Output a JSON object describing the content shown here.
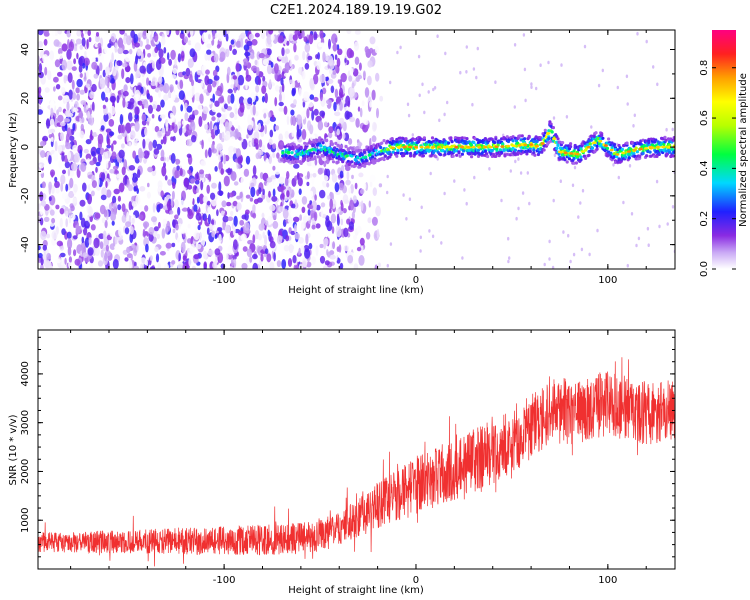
{
  "title": "C2E1.2024.189.19.19.G02",
  "chart_data": [
    {
      "type": "heatmap",
      "panel": "spectrogram",
      "xlabel": "Height of straight line (km)",
      "ylabel": "Frequency (Hz)",
      "xlim": [
        -197,
        135
      ],
      "ylim": [
        -50,
        48
      ],
      "x_ticks": [
        -100,
        0,
        100
      ],
      "x_tick_labels": [
        "-100",
        "0",
        "100"
      ],
      "y_ticks": [
        -40,
        -20,
        0,
        20,
        40
      ],
      "y_tick_labels": [
        "-40",
        "-20",
        "0",
        "20",
        "40"
      ],
      "colorbar": {
        "label": "Normalized spectral amplitude",
        "range": [
          0,
          0.95
        ],
        "ticks": [
          0.0,
          0.2,
          0.4,
          0.6,
          0.8
        ],
        "tick_labels": [
          "0.0",
          "0.2",
          "0.4",
          "0.6",
          "0.8"
        ],
        "colormap": "rainbow"
      },
      "noise_region_x": [
        -197,
        -18
      ],
      "signal_ridge": {
        "x": [
          -70,
          -60,
          -50,
          -40,
          -30,
          -20,
          -10,
          0,
          20,
          40,
          60,
          65,
          70,
          75,
          85,
          95,
          105,
          115,
          125,
          135
        ],
        "y": [
          -2,
          -3,
          0,
          -3,
          -5,
          -2,
          0,
          0,
          0,
          0,
          1,
          0,
          7,
          -2,
          -3,
          3,
          -3,
          -1,
          0,
          0
        ],
        "peak_amplitude": 0.8
      }
    },
    {
      "type": "line",
      "panel": "snr",
      "xlabel": "Height of straight line (km)",
      "ylabel": "SNR (10 * v/v)",
      "xlim": [
        -197,
        135
      ],
      "ylim": [
        0,
        4900
      ],
      "x_ticks": [
        -100,
        0,
        100
      ],
      "x_tick_labels": [
        "-100",
        "0",
        "100"
      ],
      "y_ticks": [
        1000,
        2000,
        3000,
        4000
      ],
      "y_tick_labels": [
        "1000",
        "2000",
        "3000",
        "4000"
      ],
      "color": "#f03030",
      "trend": {
        "x": [
          -197,
          -150,
          -100,
          -60,
          -40,
          -20,
          0,
          20,
          40,
          60,
          70,
          80,
          100,
          120,
          135
        ],
        "y": [
          550,
          560,
          580,
          620,
          800,
          1300,
          1700,
          2050,
          2400,
          2900,
          3300,
          3200,
          3400,
          3200,
          3300
        ]
      },
      "noise_amplitude": {
        "x": [
          -197,
          -40,
          0,
          60,
          135
        ],
        "y": [
          200,
          350,
          600,
          700,
          650
        ]
      }
    }
  ]
}
